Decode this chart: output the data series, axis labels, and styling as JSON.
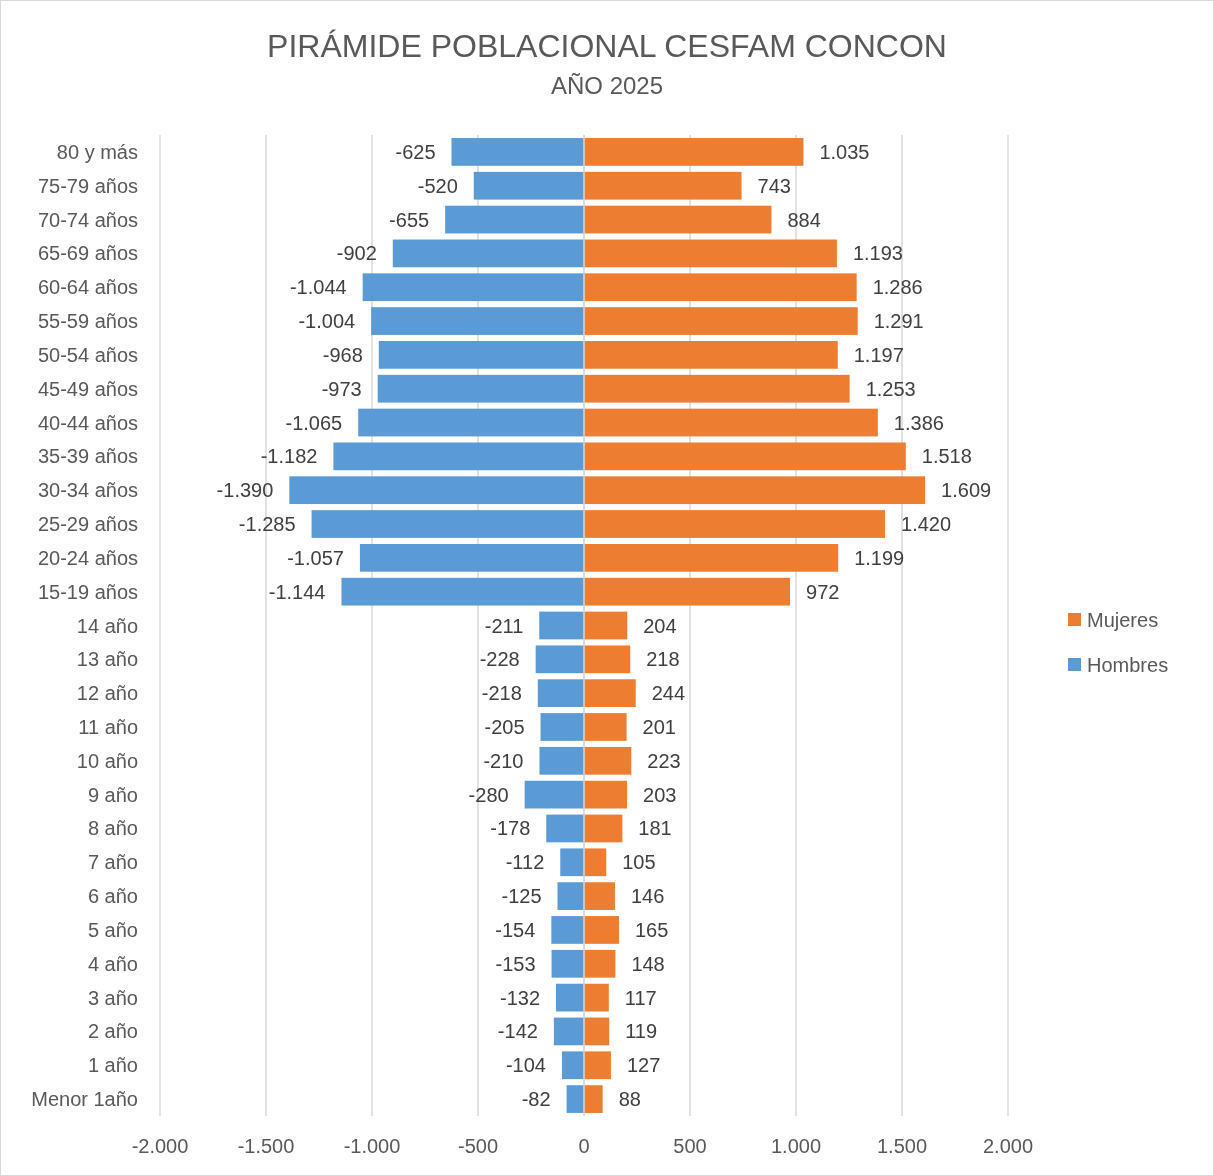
{
  "chart_data": {
    "type": "bar",
    "orientation": "horizontal",
    "stacked": true,
    "title": "PIRÁMIDE POBLACIONAL CESFAM CONCON",
    "subtitle": "AÑO 2025",
    "categories": [
      "80 y más",
      "75-79 años",
      "70-74 años",
      "65-69 años",
      "60-64 años",
      "55-59 años",
      "50-54 años",
      "45-49 años",
      "40-44 años",
      "35-39 años",
      "30-34 años",
      "25-29 años",
      "20-24 años",
      "15-19 años",
      "14 año",
      "13 año",
      "12 año",
      "11 año",
      "10 año",
      "9 año",
      "8 año",
      "7 año",
      "6 año",
      "5 año",
      "4 año",
      "3 año",
      "2 año",
      "1 año",
      "Menor 1año"
    ],
    "series": [
      {
        "name": "Mujeres",
        "color": "#ed7d31",
        "values": [
          1035,
          743,
          884,
          1193,
          1286,
          1291,
          1197,
          1253,
          1386,
          1518,
          1609,
          1420,
          1199,
          972,
          204,
          218,
          244,
          201,
          223,
          203,
          181,
          105,
          146,
          165,
          148,
          117,
          119,
          127,
          88
        ],
        "value_labels": [
          "1.035",
          "743",
          "884",
          "1.193",
          "1.286",
          "1.291",
          "1.197",
          "1.253",
          "1.386",
          "1.518",
          "1.609",
          "1.420",
          "1.199",
          "972",
          "204",
          "218",
          "244",
          "201",
          "223",
          "203",
          "181",
          "105",
          "146",
          "165",
          "148",
          "117",
          "119",
          "127",
          "88"
        ]
      },
      {
        "name": "Hombres",
        "color": "#5b9bd5",
        "values": [
          -625,
          -520,
          -655,
          -902,
          -1044,
          -1004,
          -968,
          -973,
          -1065,
          -1182,
          -1390,
          -1285,
          -1057,
          -1144,
          -211,
          -228,
          -218,
          -205,
          -210,
          -280,
          -178,
          -112,
          -125,
          -154,
          -153,
          -132,
          -142,
          -104,
          -82
        ],
        "value_labels": [
          "-625",
          "-520",
          "-655",
          "-902",
          "-1.044",
          "-1.004",
          "-968",
          "-973",
          "-1.065",
          "-1.182",
          "-1.390",
          "-1.285",
          "-1.057",
          "-1.144",
          "-211",
          "-228",
          "-218",
          "-205",
          "-210",
          "-280",
          "-178",
          "-112",
          "-125",
          "-154",
          "-153",
          "-132",
          "-142",
          "-104",
          "-82"
        ]
      }
    ],
    "xlim": [
      -2000,
      2000
    ],
    "xticks": [
      {
        "value": -2000,
        "label": "-2.000"
      },
      {
        "value": -1500,
        "label": "-1.500"
      },
      {
        "value": -1000,
        "label": "-1.000"
      },
      {
        "value": -500,
        "label": "-500"
      },
      0,
      500,
      {
        "value": 1000,
        "label": "1.000"
      },
      {
        "value": 1500,
        "label": "1.500"
      },
      {
        "value": 2000,
        "label": "2.000"
      }
    ],
    "grid": "x",
    "legend": "right"
  }
}
